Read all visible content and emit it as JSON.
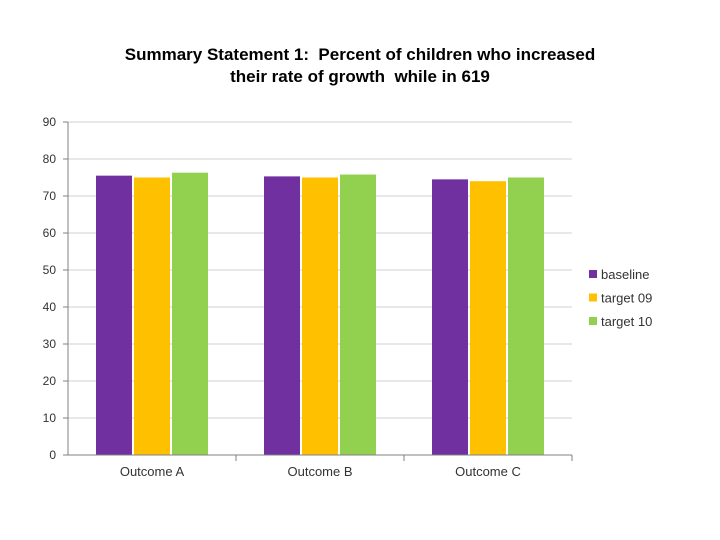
{
  "chart_data": {
    "type": "bar",
    "title_lines": [
      "Summary Statement 1:  Percent of children who increased",
      "their rate of growth  while in 619"
    ],
    "categories": [
      "Outcome A",
      "Outcome B",
      "Outcome C"
    ],
    "series": [
      {
        "name": "baseline",
        "color": "#7030a0",
        "values": [
          75.5,
          75.3,
          74.5
        ]
      },
      {
        "name": "target 09",
        "color": "#ffc000",
        "values": [
          75.0,
          75.0,
          74.0
        ]
      },
      {
        "name": "target 10",
        "color": "#92d050",
        "values": [
          76.3,
          75.8,
          75.0
        ]
      }
    ],
    "ylim": [
      0,
      90
    ],
    "yticks": [
      0,
      10,
      20,
      30,
      40,
      50,
      60,
      70,
      80,
      90
    ],
    "grid": true,
    "legend_position": "right"
  }
}
